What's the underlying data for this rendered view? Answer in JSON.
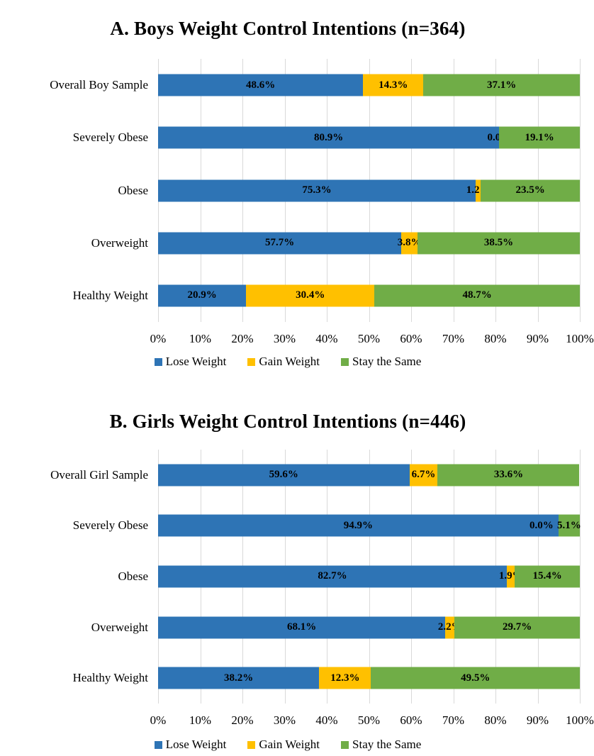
{
  "page": {
    "background": "#ffffff",
    "text_color": "#000000",
    "gridline_color": "#d9d9d9"
  },
  "chart_data": [
    {
      "type": "bar",
      "orientation": "horizontal-stacked",
      "title": "A. Boys Weight Control Intentions (n=364)",
      "categories": [
        "Overall Boy Sample",
        "Severely Obese",
        "Obese",
        "Overweight",
        "Healthy Weight"
      ],
      "series": [
        {
          "name": "Lose Weight",
          "color": "#2E74B5",
          "values": [
            48.6,
            80.9,
            75.3,
            57.7,
            20.9
          ]
        },
        {
          "name": "Gain Weight",
          "color": "#FFC000",
          "values": [
            14.3,
            0.0,
            1.2,
            3.8,
            30.4
          ]
        },
        {
          "name": "Stay the Same",
          "color": "#70AD47",
          "values": [
            37.1,
            19.1,
            23.5,
            38.5,
            48.7
          ]
        }
      ],
      "data_labels": [
        [
          "48.6%",
          "14.3%",
          "37.1%"
        ],
        [
          "80.9%",
          "0.0%",
          "19.1%"
        ],
        [
          "75.3%",
          "1.2%",
          "23.5%"
        ],
        [
          "57.7%",
          "3.8%",
          "38.5%"
        ],
        [
          "20.9%",
          "30.4%",
          "48.7%"
        ]
      ],
      "xlim": [
        0,
        100
      ],
      "x_ticks": [
        "0%",
        "10%",
        "20%",
        "30%",
        "40%",
        "50%",
        "60%",
        "70%",
        "80%",
        "90%",
        "100%"
      ],
      "grid": "vertical",
      "legend_position": "bottom"
    },
    {
      "type": "bar",
      "orientation": "horizontal-stacked",
      "title": "B. Girls Weight Control Intentions (n=446)",
      "categories": [
        "Overall Girl Sample",
        "Severely Obese",
        "Obese",
        "Overweight",
        "Healthy Weight"
      ],
      "series": [
        {
          "name": "Lose Weight",
          "color": "#2E74B5",
          "values": [
            59.6,
            94.9,
            82.7,
            68.1,
            38.2
          ]
        },
        {
          "name": "Gain Weight",
          "color": "#FFC000",
          "values": [
            6.7,
            0.0,
            1.9,
            2.2,
            12.3
          ]
        },
        {
          "name": "Stay the Same",
          "color": "#70AD47",
          "values": [
            33.6,
            5.1,
            15.4,
            29.7,
            49.5
          ]
        }
      ],
      "data_labels": [
        [
          "59.6%",
          "6.7%",
          "33.6%"
        ],
        [
          "94.9%",
          "0.0%",
          "5.1%"
        ],
        [
          "82.7%",
          "1.9%",
          "15.4%"
        ],
        [
          "68.1%",
          "2.2%",
          "29.7%"
        ],
        [
          "38.2%",
          "12.3%",
          "49.5%"
        ]
      ],
      "xlim": [
        0,
        100
      ],
      "x_ticks": [
        "0%",
        "10%",
        "20%",
        "30%",
        "40%",
        "50%",
        "60%",
        "70%",
        "80%",
        "90%",
        "100%"
      ],
      "grid": "vertical",
      "legend_position": "bottom"
    }
  ]
}
